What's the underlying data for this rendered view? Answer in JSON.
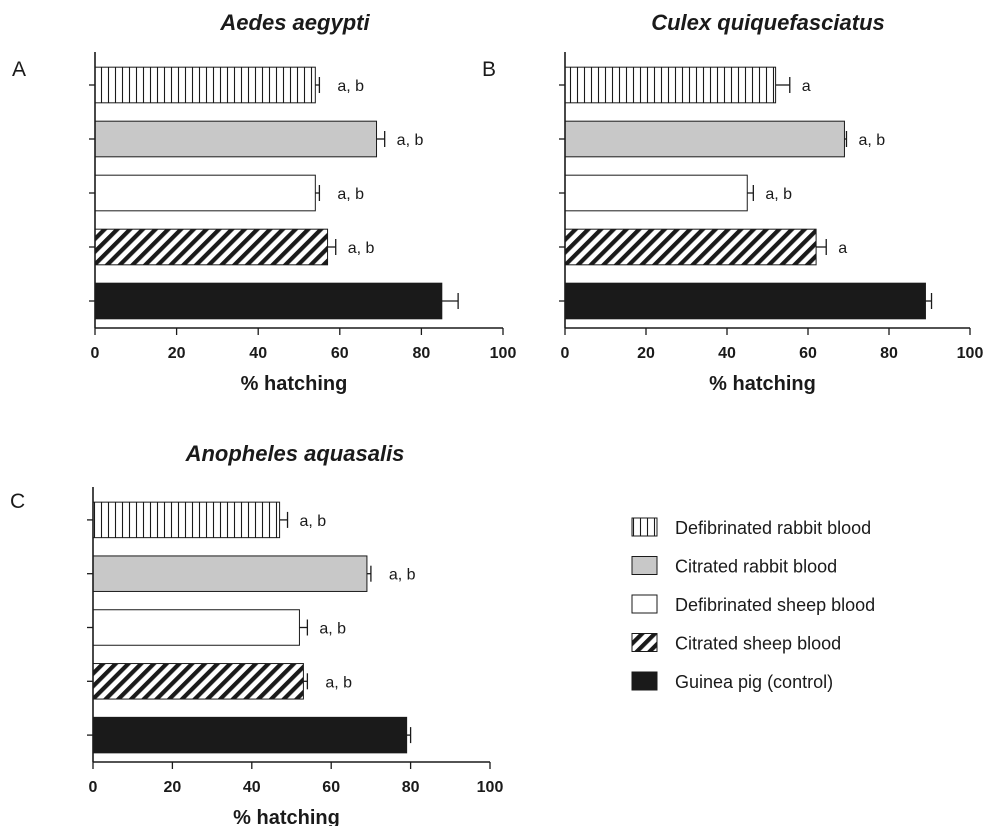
{
  "chart_data": [
    {
      "type": "bar",
      "orientation": "horizontal",
      "panel": "A",
      "title": "Aedes aegypti",
      "xlabel": "% hatching",
      "xlim": [
        0,
        100
      ],
      "xticks": [
        0,
        20,
        40,
        60,
        80,
        100
      ],
      "grid": false,
      "bars": [
        {
          "series": "Defibrinated rabbit blood",
          "value": 54,
          "error": 1,
          "label": "a, b"
        },
        {
          "series": "Citrated rabbit blood",
          "value": 69,
          "error": 2,
          "label": "a, b"
        },
        {
          "series": "Defibrinated sheep blood",
          "value": 54,
          "error": 1,
          "label": "a, b"
        },
        {
          "series": "Citrated sheep blood",
          "value": 57,
          "error": 2,
          "label": "a, b"
        },
        {
          "series": "Guinea pig (control)",
          "value": 85,
          "error": 4,
          "label": ""
        }
      ]
    },
    {
      "type": "bar",
      "orientation": "horizontal",
      "panel": "B",
      "title": "Culex quiquefasciatus",
      "xlabel": "% hatching",
      "xlim": [
        0,
        100
      ],
      "xticks": [
        0,
        20,
        40,
        60,
        80,
        100
      ],
      "grid": false,
      "bars": [
        {
          "series": "Defibrinated rabbit blood",
          "value": 52,
          "error": 3.5,
          "label": "a"
        },
        {
          "series": "Citrated rabbit blood",
          "value": 69,
          "error": 0.5,
          "label": "a, b"
        },
        {
          "series": "Defibrinated sheep blood",
          "value": 45,
          "error": 1.5,
          "label": "a, b"
        },
        {
          "series": "Citrated sheep blood",
          "value": 62,
          "error": 2.5,
          "label": "a"
        },
        {
          "series": "Guinea pig (control)",
          "value": 89,
          "error": 1.5,
          "label": ""
        }
      ]
    },
    {
      "type": "bar",
      "orientation": "horizontal",
      "panel": "C",
      "title": "Anopheles aquasalis",
      "xlabel": "% hatching",
      "xlim": [
        0,
        100
      ],
      "xticks": [
        0,
        20,
        40,
        60,
        80,
        100
      ],
      "grid": false,
      "bars": [
        {
          "series": "Defibrinated rabbit blood",
          "value": 47,
          "error": 2,
          "label": "a, b"
        },
        {
          "series": "Citrated rabbit blood",
          "value": 69,
          "error": 1,
          "label": "a, b"
        },
        {
          "series": "Defibrinated sheep blood",
          "value": 52,
          "error": 2,
          "label": "a, b"
        },
        {
          "series": "Citrated sheep blood",
          "value": 53,
          "error": 1,
          "label": "a, b"
        },
        {
          "series": "Guinea pig (control)",
          "value": 79,
          "error": 1,
          "label": ""
        }
      ]
    }
  ],
  "legend": {
    "position": "bottom-right",
    "items": [
      {
        "label": "Defibrinated rabbit blood",
        "pattern": "vertical-stripes"
      },
      {
        "label": "Citrated rabbit blood",
        "pattern": "solid-gray"
      },
      {
        "label": "Defibrinated sheep blood",
        "pattern": "solid-white"
      },
      {
        "label": "Citrated sheep blood",
        "pattern": "diagonal-stripes"
      },
      {
        "label": "Guinea pig (control)",
        "pattern": "solid-black"
      }
    ]
  },
  "colors": {
    "ink": "#1a1a1a",
    "gray_fill": "#c8c8c8",
    "black_fill": "#1a1a1a",
    "white_fill": "#ffffff"
  }
}
